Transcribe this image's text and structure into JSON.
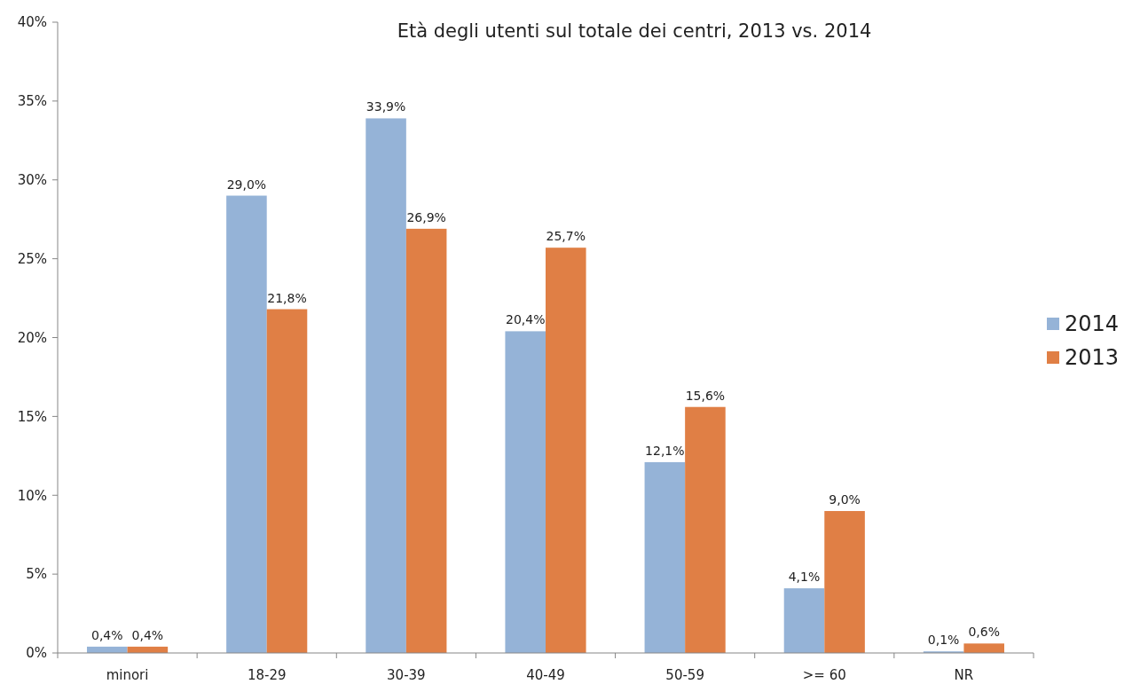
{
  "chart_data": {
    "type": "bar",
    "title": "Età degli utenti sul totale dei centri, 2013 vs. 2014",
    "categories": [
      "minori",
      "18-29",
      "30-39",
      "40-49",
      "50-59",
      ">= 60",
      "NR"
    ],
    "series": [
      {
        "name": "2014",
        "color": "#95b3d7",
        "values": [
          0.4,
          29.0,
          33.9,
          20.4,
          12.1,
          4.1,
          0.1
        ],
        "value_labels": [
          "0,4%",
          "29,0%",
          "33,9%",
          "20,4%",
          "12,1%",
          "4,1%",
          "0,1%"
        ]
      },
      {
        "name": "2013",
        "color": "#e07f45",
        "values": [
          0.4,
          21.8,
          26.9,
          25.7,
          15.6,
          9.0,
          0.6
        ],
        "value_labels": [
          "0,4%",
          "21,8%",
          "26,9%",
          "25,7%",
          "15,6%",
          "9,0%",
          "0,6%"
        ]
      }
    ],
    "ylim": [
      0,
      40
    ],
    "yticks": [
      {
        "value": 0,
        "label": "0%"
      },
      {
        "value": 5,
        "label": "5%"
      },
      {
        "value": 10,
        "label": "10%"
      },
      {
        "value": 15,
        "label": "15%"
      },
      {
        "value": 20,
        "label": "20%"
      },
      {
        "value": 25,
        "label": "25%"
      },
      {
        "value": 30,
        "label": "30%"
      },
      {
        "value": 35,
        "label": "35%"
      },
      {
        "value": 40,
        "label": "40%"
      }
    ],
    "grid": false,
    "legend": "right"
  }
}
